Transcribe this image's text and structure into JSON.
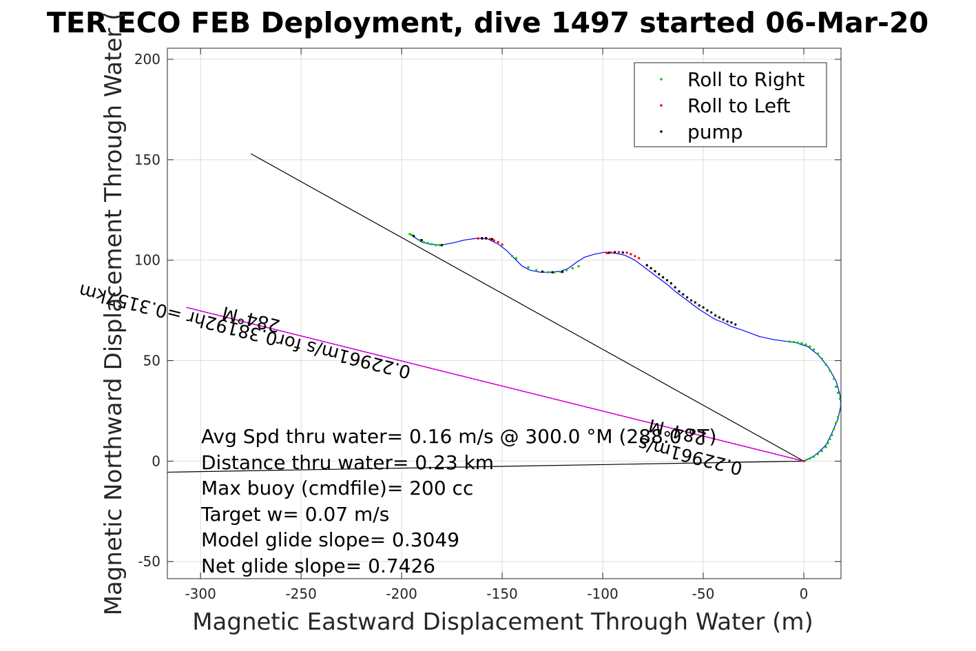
{
  "chart_data": {
    "type": "line",
    "title": "TER ECO FEB Deployment, dive 1497 started 06-Mar-20",
    "xlabel": "Magnetic Eastward Displacement Through Water (m)",
    "ylabel": "Magnetic Northward Displacement Through Water (",
    "xlim": [
      -316.5,
      18.5
    ],
    "ylim": [
      -58.5,
      205.5
    ],
    "xticks": [
      -300,
      -250,
      -200,
      -150,
      -100,
      -50,
      0
    ],
    "yticks": [
      -50,
      0,
      50,
      100,
      150,
      200
    ],
    "grid": true,
    "legend": {
      "placement": "top-right",
      "entries": [
        {
          "label": "Roll to Right",
          "color": "#00cc00"
        },
        {
          "label": "Roll to Left",
          "color": "#ff0000"
        },
        {
          "label": "pump",
          "color": "#000000"
        }
      ]
    },
    "track": {
      "name": "glider track",
      "color": "#0000ff",
      "x": [
        -196,
        -193,
        -190,
        -186,
        -181,
        -175,
        -169,
        -162,
        -157,
        -152,
        -148,
        -144,
        -140,
        -136,
        -131,
        -126,
        -121,
        -117,
        -113,
        -109,
        -104,
        -99,
        -94,
        -89,
        -84,
        -80,
        -76,
        -72,
        -68,
        -64,
        -60,
        -56,
        -52,
        -48,
        -44,
        -40,
        -36,
        -30,
        -22,
        -15,
        -8,
        -4,
        2,
        7,
        12,
        16,
        18,
        18.5,
        17,
        14,
        11,
        8,
        5,
        2,
        0
      ],
      "y": [
        113,
        111,
        109,
        108,
        107.5,
        108.5,
        110,
        111,
        110.5,
        108,
        105,
        101,
        97,
        95,
        94,
        94,
        94.5,
        96,
        99,
        101.5,
        103,
        104,
        103.5,
        102.5,
        100,
        97,
        94,
        91,
        88,
        84.5,
        81.5,
        78.5,
        75.5,
        73,
        70.5,
        69,
        67,
        65,
        62,
        60.5,
        59.5,
        59,
        57,
        53,
        47,
        40,
        33,
        28,
        21,
        14,
        8,
        5,
        2.5,
        1,
        0
      ]
    },
    "roll_right": {
      "color": "#00cc00",
      "x": [
        -196,
        -195,
        -194,
        -191,
        -189,
        -187,
        -185,
        -183,
        -181,
        -145,
        -143,
        -137,
        -133,
        -130,
        -127,
        -124,
        -121,
        -118,
        -115,
        -112,
        -7,
        -5,
        -3,
        -1,
        1,
        3,
        5,
        7,
        9,
        11,
        13,
        15,
        16,
        17,
        18,
        18.5,
        18,
        17,
        16,
        15,
        14,
        13,
        12,
        11,
        9,
        7,
        5,
        3,
        1
      ],
      "y": [
        113,
        112.5,
        112,
        110,
        109,
        108.5,
        108,
        107.5,
        107.5,
        102,
        101,
        96.5,
        95,
        94.3,
        94,
        94,
        94.2,
        95,
        96,
        97,
        59.5,
        59.3,
        59,
        58.7,
        58,
        57,
        55.5,
        53.5,
        51,
        48,
        45,
        41,
        37,
        34,
        31,
        28,
        25,
        22,
        19,
        16,
        13,
        11,
        9,
        7,
        5,
        3.5,
        2.2,
        1.2,
        0.4
      ]
    },
    "roll_left": {
      "color": "#ff0000",
      "x": [
        -162,
        -160,
        -158,
        -156,
        -154,
        -152,
        -150,
        -98,
        -96,
        -92,
        -88,
        -86,
        -84,
        -82,
        0
      ],
      "y": [
        110.8,
        111,
        110.8,
        110.5,
        109.8,
        109,
        107.8,
        103.6,
        103.8,
        104,
        103.7,
        103,
        102,
        101,
        0
      ]
    },
    "pump": {
      "color": "#000000",
      "x": [
        -194,
        -190,
        -180,
        -160,
        -158,
        -155,
        -130,
        -125,
        -120,
        -97,
        -94,
        -90,
        -78,
        -76,
        -74,
        -72,
        -70,
        -68,
        -66,
        -64,
        -62,
        -60,
        -58,
        -56,
        -54,
        -52,
        -50,
        -48,
        -46,
        -44,
        -42,
        -40,
        -38,
        -36,
        -34
      ],
      "y": [
        112,
        110,
        107.5,
        110.8,
        111,
        110.5,
        94.3,
        94,
        94.2,
        103.7,
        104,
        103.8,
        97.5,
        96,
        94.5,
        93,
        91.5,
        90,
        88.5,
        86.5,
        84.5,
        83,
        81.5,
        80,
        79,
        77.5,
        76.5,
        75,
        74,
        72.5,
        71.5,
        70.5,
        69.5,
        69,
        68
      ]
    },
    "lines": [
      {
        "name": "heading line",
        "color": "#000000",
        "x": [
          -275,
          0
        ],
        "y": [
          153,
          0
        ]
      },
      {
        "name": "current line",
        "color": "#000000",
        "x": [
          -316.5,
          0
        ],
        "y": [
          -5.5,
          0
        ]
      },
      {
        "name": "magnetic heading line",
        "color": "#ff00ff",
        "x": [
          -307,
          0
        ],
        "y": [
          76.5,
          0
        ]
      }
    ],
    "annotations": [
      {
        "text": "284°M",
        "x": -260,
        "y": 70,
        "rotation": 194,
        "size": 26
      },
      {
        "text": "0.22961m/s for0.38192hr =0.3157km",
        "x": -195,
        "y": 47,
        "rotation": 194,
        "size": 26
      },
      {
        "text": "284°M",
        "x": -48,
        "y": 14,
        "rotation": 194,
        "size": 26
      },
      {
        "text": "0.22961m/s",
        "x": -30,
        "y": -1,
        "rotation": 194,
        "size": 26
      }
    ]
  },
  "info": {
    "line1": "Avg Spd thru water=  0.16 m/s @ 300.0 °M (288.0 °T)",
    "line2": "Distance thru water=  0.23 km",
    "line3": "Max buoy (cmdfile)= 200 cc",
    "line4": "Target w= 0.07 m/s",
    "line5": "Model glide slope= 0.3049",
    "line6": "Net glide slope= 0.7426"
  }
}
